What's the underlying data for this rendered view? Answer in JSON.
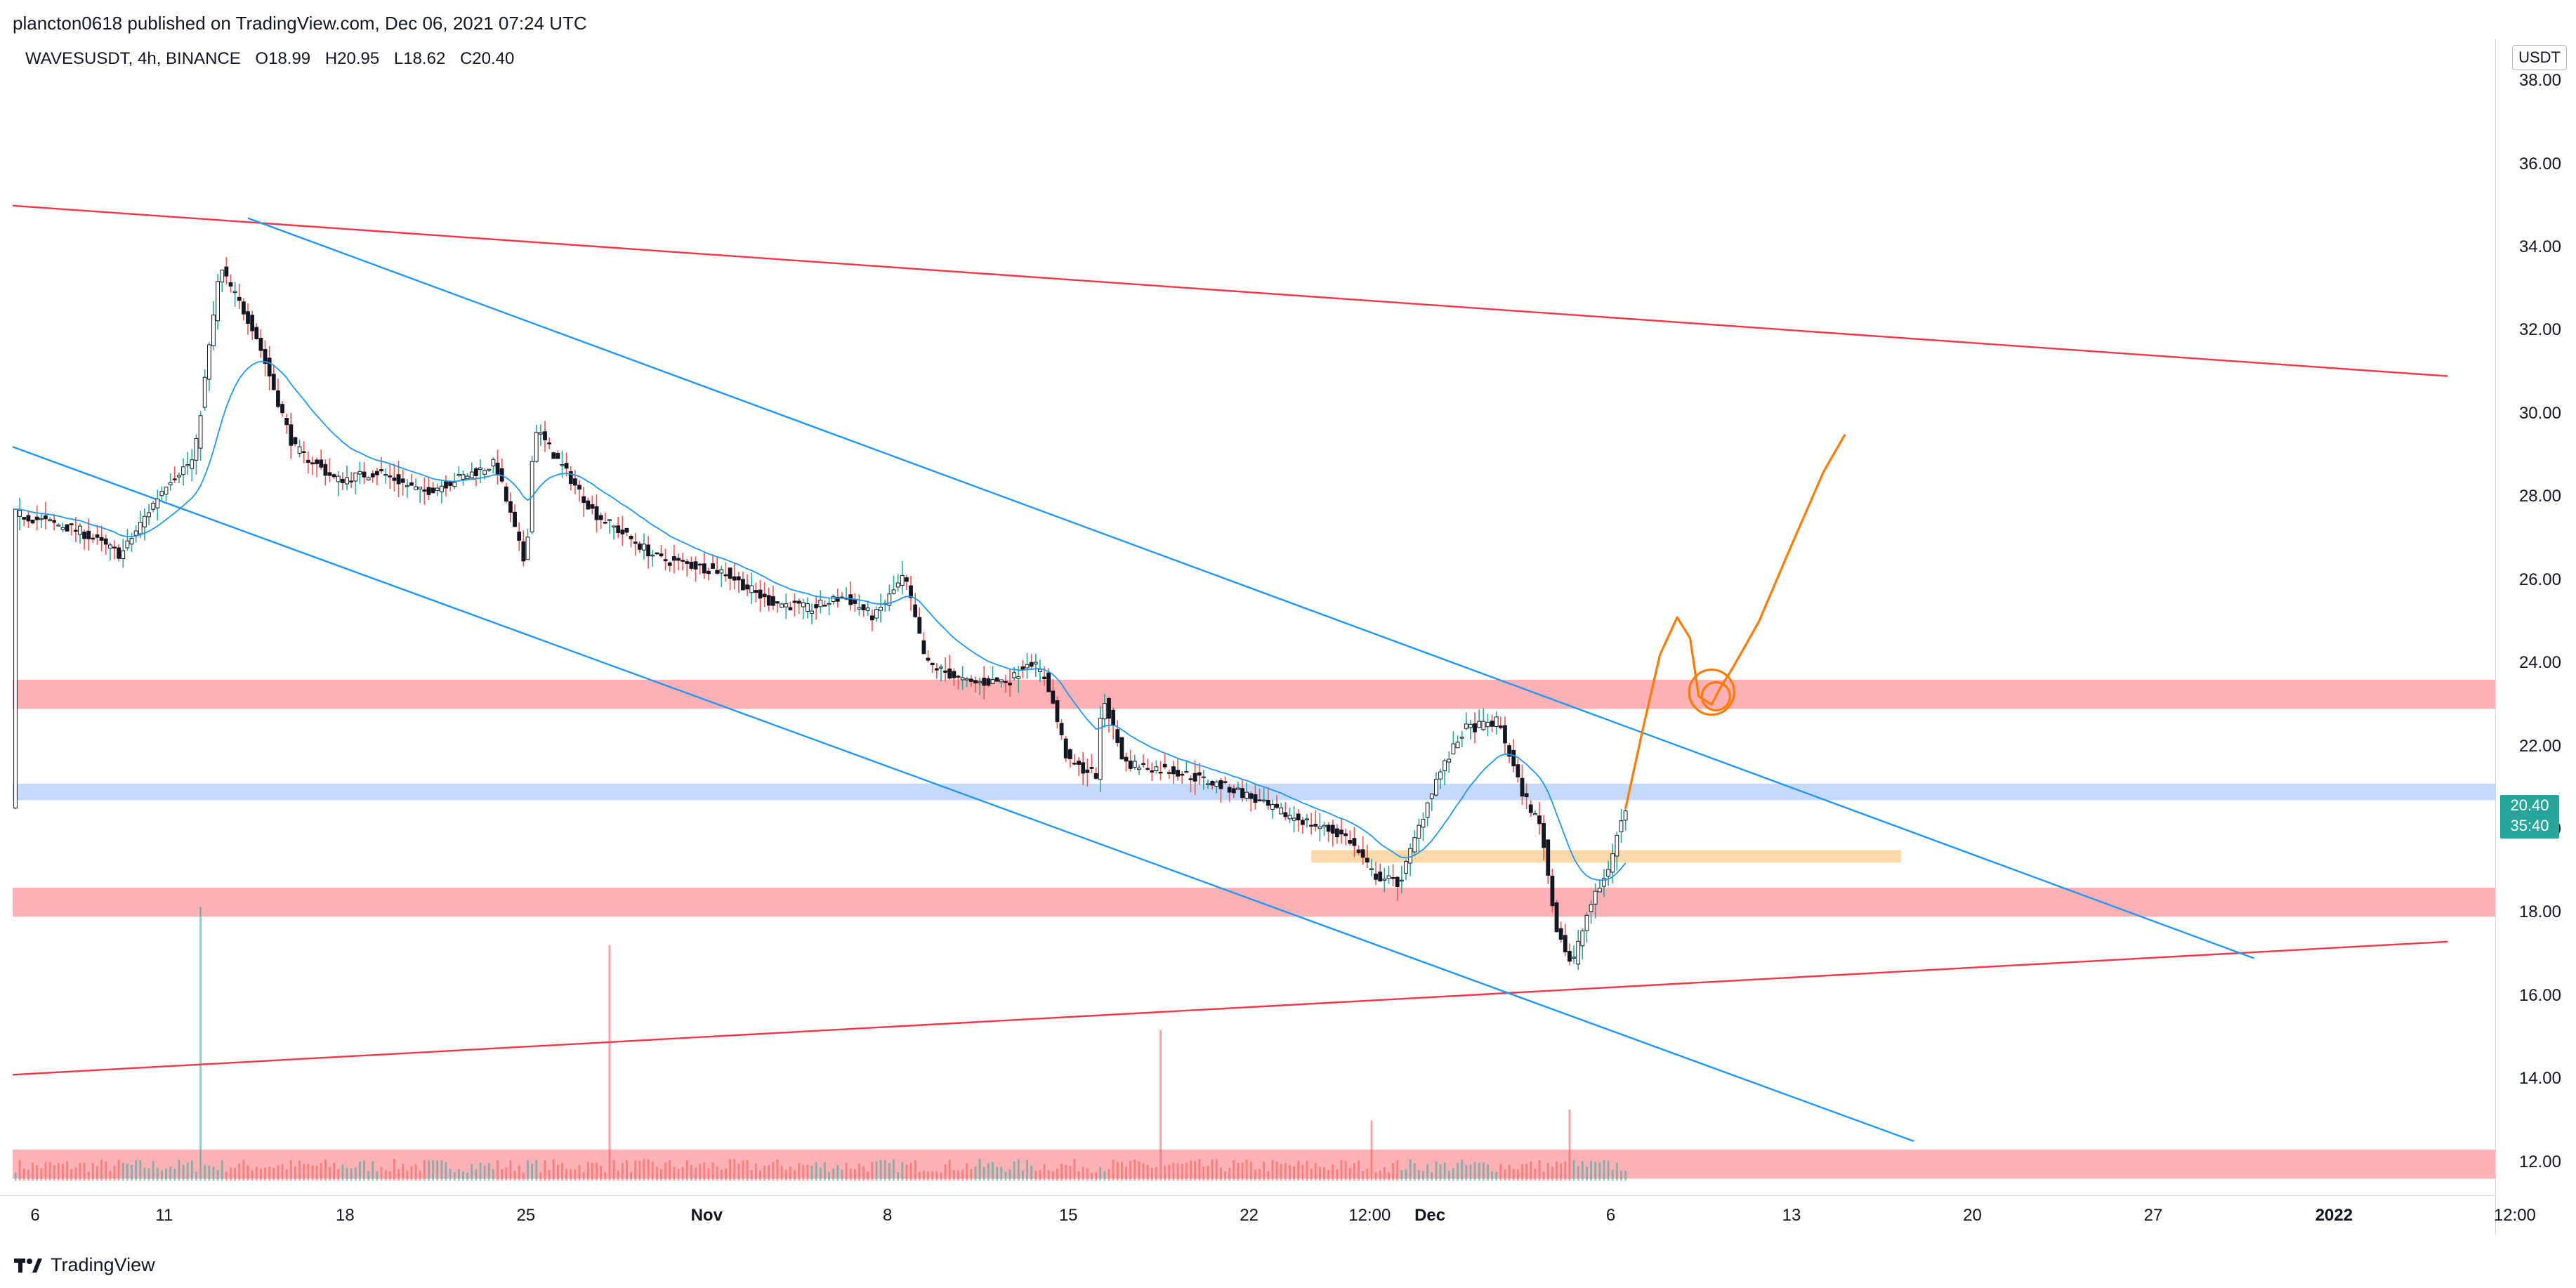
{
  "header": {
    "attribution": "plancton0618 published on TradingView.com, Dec 06, 2021 07:24 UTC"
  },
  "symbol": {
    "name": "WAVESUSDT, 4h, BINANCE",
    "open": "O18.99",
    "high": "H20.95",
    "low": "L18.62",
    "close": "C20.40"
  },
  "price_axis": {
    "currency": "USDT",
    "last_price": "20.40",
    "countdown": "35:40"
  },
  "footer": {
    "brand": "TradingView"
  },
  "colors": {
    "bull": "#26a69a",
    "bear": "#ef5350",
    "candle_body": "#131722",
    "trendline_red": "#f23645",
    "channel_blue": "#2196f3",
    "zone_red": "#ffb2b5",
    "zone_blue": "#c5dafa",
    "zone_orange": "#fcd9a8",
    "drawing_orange": "#ff7a00"
  },
  "chart_data": {
    "type": "candlestick",
    "symbol": "WAVESUSDT",
    "interval": "4h",
    "exchange": "BINANCE",
    "ylim": [
      11.2,
      39.0
    ],
    "y_ticks": [
      12,
      14,
      16,
      18,
      20,
      22,
      24,
      26,
      28,
      30,
      32,
      34,
      36,
      38
    ],
    "y_tick_labels": [
      "12.00",
      "14.00",
      "16.00",
      "18.00",
      "20.00",
      "22.00",
      "24.00",
      "26.00",
      "28.00",
      "30.00",
      "32.00",
      "34.00",
      "36.00",
      "38.00"
    ],
    "x_tick_labels": [
      "6",
      "11",
      "18",
      "25",
      "Nov",
      "8",
      "15",
      "22",
      "12:00",
      "Dec",
      "6",
      "13",
      "20",
      "27",
      "2022",
      "12:00"
    ],
    "price_path": [
      [
        0,
        27.6
      ],
      [
        15,
        27.2
      ],
      [
        25,
        26.6
      ],
      [
        36,
        28.4
      ],
      [
        42,
        28.9
      ],
      [
        48,
        33.5
      ],
      [
        56,
        32.0
      ],
      [
        65,
        29.2
      ],
      [
        75,
        28.4
      ],
      [
        85,
        28.6
      ],
      [
        95,
        28.1
      ],
      [
        105,
        28.5
      ],
      [
        112,
        28.8
      ],
      [
        119,
        26.3
      ],
      [
        121,
        29.7
      ],
      [
        135,
        27.6
      ],
      [
        150,
        26.5
      ],
      [
        165,
        26.2
      ],
      [
        175,
        25.5
      ],
      [
        185,
        25.3
      ],
      [
        193,
        25.6
      ],
      [
        200,
        25.1
      ],
      [
        207,
        26.1
      ],
      [
        212,
        24.0
      ],
      [
        222,
        23.5
      ],
      [
        232,
        23.6
      ],
      [
        236,
        24.1
      ],
      [
        240,
        23.6
      ],
      [
        245,
        21.6
      ],
      [
        252,
        21.3
      ],
      [
        252.8,
        23.3
      ],
      [
        258,
        21.6
      ],
      [
        270,
        21.4
      ],
      [
        285,
        20.9
      ],
      [
        292,
        20.5
      ],
      [
        300,
        20.2
      ],
      [
        310,
        19.8
      ],
      [
        316,
        18.9
      ],
      [
        322,
        18.7
      ],
      [
        330,
        21.1
      ],
      [
        337,
        22.4
      ],
      [
        345,
        22.6
      ],
      [
        350,
        21.0
      ],
      [
        355,
        20.0
      ],
      [
        358,
        17.8
      ],
      [
        362,
        16.7
      ],
      [
        366,
        18.1
      ],
      [
        370,
        18.9
      ],
      [
        374,
        20.4
      ]
    ],
    "ema_series": {
      "values_follow": "price_path",
      "lag": 6
    },
    "volume_spikes": [
      {
        "x": 43,
        "v": 1.0
      },
      {
        "x": 137.5,
        "v": 0.86
      },
      {
        "x": 265.5,
        "v": 0.55
      },
      {
        "x": 360.5,
        "v": 0.26
      },
      {
        "x": 315,
        "v": 0.22
      }
    ],
    "drawings": {
      "red_trendline_upper": {
        "p1": [
          0,
          35.0
        ],
        "p2": [
          565,
          30.9
        ]
      },
      "red_trendline_lower": {
        "p1": [
          0,
          14.1
        ],
        "p2": [
          565,
          17.3
        ]
      },
      "blue_channel_upper": {
        "p1": [
          54,
          34.7
        ],
        "p2": [
          520,
          16.9
        ]
      },
      "blue_channel_lower": {
        "p1": [
          0,
          29.2
        ],
        "p2": [
          441,
          12.5
        ]
      },
      "zones": [
        {
          "color": "red",
          "from": 22.9,
          "to": 23.6,
          "x_start": 0
        },
        {
          "color": "blue",
          "from": 20.7,
          "to": 21.1,
          "x_start": 0
        },
        {
          "color": "red",
          "from": 17.9,
          "to": 18.6,
          "x_start": 0
        },
        {
          "color": "red",
          "from": 11.6,
          "to": 12.3,
          "x_start": 0
        },
        {
          "color": "orange",
          "from": 19.2,
          "to": 19.5,
          "x_start": 301,
          "x_end": 438
        }
      ],
      "projection_path": [
        [
          374,
          20.5
        ],
        [
          378,
          22.4
        ],
        [
          382,
          24.2
        ],
        [
          386,
          25.1
        ],
        [
          389,
          24.6
        ],
        [
          391,
          23.2
        ],
        [
          394,
          23.0
        ],
        [
          396,
          23.4
        ],
        [
          399,
          23.9
        ],
        [
          405,
          25.0
        ],
        [
          412,
          26.7
        ],
        [
          420,
          28.6
        ],
        [
          425,
          29.5
        ]
      ]
    }
  }
}
